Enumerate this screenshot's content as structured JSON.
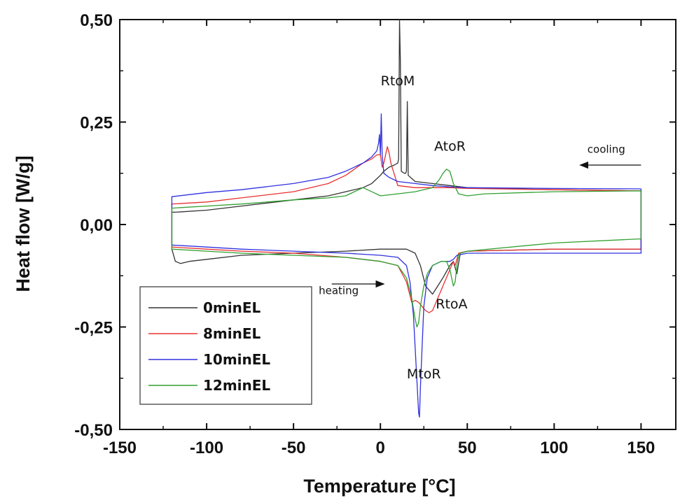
{
  "chart_data": {
    "type": "line",
    "title": "",
    "xlabel": "Temperature [°C]",
    "ylabel": "Heat flow [W/g]",
    "xlim": [
      -150,
      170
    ],
    "ylim": [
      -0.5,
      0.5
    ],
    "xticks": [
      -150,
      -100,
      -50,
      0,
      50,
      100,
      150
    ],
    "xtick_labels": [
      "-150",
      "-100",
      "-50",
      "0",
      "50",
      "100",
      "150"
    ],
    "yticks": [
      0.5,
      0.25,
      0.0,
      -0.25,
      -0.5
    ],
    "ytick_labels": [
      "0,50",
      "0,25",
      "0,00",
      "-0,25",
      "-0,50"
    ],
    "grid": false,
    "legend_position": "bottom-left",
    "annotations": [
      {
        "text": "RtoM",
        "x": 10,
        "y": 0.34
      },
      {
        "text": "AtoR",
        "x": 40,
        "y": 0.18
      },
      {
        "text": "cooling",
        "x": 130,
        "y": 0.175
      },
      {
        "text": "heating",
        "x": -24,
        "y": -0.17
      },
      {
        "text": "RtoA",
        "x": 41,
        "y": -0.205
      },
      {
        "text": "MtoR",
        "x": 25,
        "y": -0.375
      }
    ],
    "arrows": [
      {
        "from": [
          150,
          0.145
        ],
        "to": [
          115,
          0.145
        ]
      },
      {
        "from": [
          -28,
          -0.145
        ],
        "to": [
          2,
          -0.145
        ]
      }
    ],
    "series": [
      {
        "name": "0minEL",
        "color": "#333333",
        "x": [
          150,
          100,
          50,
          40,
          30,
          20,
          16,
          15.5,
          15,
          14.5,
          14,
          13,
          12,
          11.5,
          11,
          10.5,
          10,
          8,
          5,
          2,
          0,
          -5,
          -10,
          -20,
          -30,
          -50,
          -80,
          -100,
          -118,
          -120,
          -120,
          -118,
          -115,
          -110,
          -100,
          -80,
          -50,
          -20,
          0,
          10,
          15,
          20,
          23,
          26,
          30,
          33,
          36,
          40,
          42,
          44,
          46,
          50,
          100,
          150,
          150
        ],
        "y": [
          0.082,
          0.085,
          0.09,
          0.095,
          0.1,
          0.105,
          0.12,
          0.3,
          0.13,
          0.125,
          0.125,
          0.127,
          0.13,
          0.4,
          0.5,
          0.16,
          0.15,
          0.145,
          0.14,
          0.13,
          0.12,
          0.1,
          0.09,
          0.08,
          0.07,
          0.06,
          0.045,
          0.035,
          0.03,
          0.03,
          -0.06,
          -0.09,
          -0.095,
          -0.09,
          -0.085,
          -0.075,
          -0.07,
          -0.065,
          -0.06,
          -0.06,
          -0.06,
          -0.07,
          -0.1,
          -0.15,
          -0.17,
          -0.15,
          -0.13,
          -0.1,
          -0.09,
          -0.12,
          -0.07,
          -0.065,
          -0.06,
          -0.06,
          0.082
        ]
      },
      {
        "name": "8minEL",
        "color": "#e83030",
        "x": [
          150,
          100,
          50,
          40,
          30,
          20,
          10,
          6,
          5,
          4,
          3,
          2,
          1,
          0,
          -2,
          -5,
          -10,
          -20,
          -30,
          -50,
          -80,
          -100,
          -120,
          -120,
          -100,
          -80,
          -50,
          -20,
          0,
          10,
          15,
          18,
          20,
          22,
          24,
          26,
          28,
          30,
          32,
          36,
          40,
          42,
          43,
          45,
          50,
          100,
          150,
          150
        ],
        "y": [
          0.082,
          0.085,
          0.088,
          0.09,
          0.09,
          0.09,
          0.095,
          0.15,
          0.175,
          0.19,
          0.17,
          0.15,
          0.14,
          0.17,
          0.17,
          0.16,
          0.15,
          0.12,
          0.1,
          0.08,
          0.065,
          0.055,
          0.05,
          -0.055,
          -0.06,
          -0.065,
          -0.07,
          -0.08,
          -0.09,
          -0.1,
          -0.14,
          -0.19,
          -0.185,
          -0.19,
          -0.2,
          -0.21,
          -0.215,
          -0.21,
          -0.19,
          -0.15,
          -0.11,
          -0.09,
          -0.1,
          -0.07,
          -0.065,
          -0.06,
          -0.06,
          0.082
        ]
      },
      {
        "name": "10minEL",
        "color": "#3030e0",
        "x": [
          150,
          100,
          50,
          40,
          30,
          20,
          10,
          5,
          2,
          1,
          0.5,
          0,
          -0.5,
          -1,
          -2,
          -5,
          -10,
          -20,
          -30,
          -50,
          -80,
          -100,
          -120,
          -120,
          -100,
          -80,
          -50,
          -20,
          0,
          10,
          15,
          17,
          19,
          20,
          21,
          22,
          22.5,
          23,
          24,
          25,
          27,
          30,
          35,
          40,
          42,
          44,
          50,
          100,
          150,
          150
        ],
        "y": [
          0.087,
          0.088,
          0.09,
          0.092,
          0.095,
          0.1,
          0.105,
          0.115,
          0.125,
          0.17,
          0.27,
          0.17,
          0.22,
          0.2,
          0.18,
          0.165,
          0.15,
          0.13,
          0.115,
          0.1,
          0.085,
          0.078,
          0.068,
          -0.05,
          -0.055,
          -0.06,
          -0.065,
          -0.07,
          -0.075,
          -0.08,
          -0.1,
          -0.14,
          -0.22,
          -0.3,
          -0.38,
          -0.46,
          -0.47,
          -0.4,
          -0.3,
          -0.2,
          -0.13,
          -0.1,
          -0.09,
          -0.09,
          -0.085,
          -0.075,
          -0.07,
          -0.07,
          -0.07,
          0.087
        ]
      },
      {
        "name": "12minEL",
        "color": "#30a030",
        "x": [
          150,
          100,
          60,
          50,
          45,
          42,
          40,
          38,
          36,
          34,
          30,
          20,
          10,
          0,
          -5,
          -10,
          -15,
          -20,
          -30,
          -50,
          -80,
          -100,
          -120,
          -120,
          -100,
          -80,
          -50,
          -20,
          0,
          10,
          15,
          18,
          20,
          21,
          22,
          23,
          25,
          27,
          30,
          35,
          38,
          40,
          42,
          43,
          44,
          45,
          46,
          50,
          100,
          150,
          150
        ],
        "y": [
          0.082,
          0.08,
          0.075,
          0.07,
          0.075,
          0.1,
          0.13,
          0.135,
          0.125,
          0.11,
          0.09,
          0.08,
          0.075,
          0.07,
          0.08,
          0.09,
          0.08,
          0.07,
          0.065,
          0.06,
          0.05,
          0.045,
          0.04,
          -0.06,
          -0.065,
          -0.07,
          -0.075,
          -0.08,
          -0.09,
          -0.1,
          -0.13,
          -0.18,
          -0.23,
          -0.25,
          -0.24,
          -0.2,
          -0.15,
          -0.12,
          -0.1,
          -0.09,
          -0.09,
          -0.11,
          -0.15,
          -0.14,
          -0.1,
          -0.075,
          -0.07,
          -0.065,
          -0.045,
          -0.035,
          0.082
        ]
      }
    ]
  }
}
